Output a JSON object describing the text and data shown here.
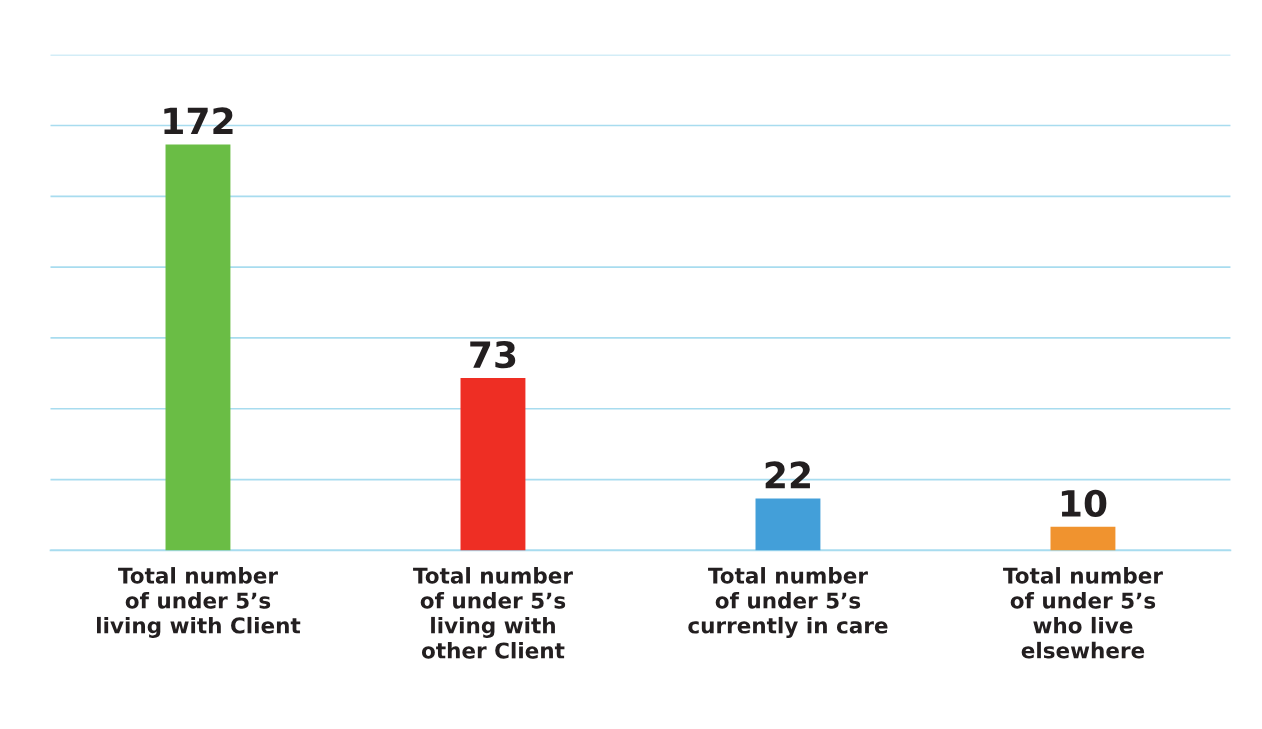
{
  "chart_data": {
    "type": "bar",
    "categories": [
      "Total number\nof under 5’s\nliving with Client",
      "Total number\nof under 5’s\nliving with\nother Client",
      "Total number\nof under 5’s\ncurrently in care",
      "Total number\nof under 5’s\nwho live\nelsewhere"
    ],
    "values": [
      172,
      73,
      22,
      10
    ],
    "colors": [
      "#6abd45",
      "#ee2e24",
      "#439fd9",
      "#f0932f"
    ],
    "ylim": [
      0,
      210
    ],
    "yticks": [
      {
        "value": 0,
        "label": null
      },
      {
        "value": 30,
        "label": null
      },
      {
        "value": 60,
        "label": null
      },
      {
        "value": 90,
        "label": null
      },
      {
        "value": 120,
        "label": null
      },
      {
        "value": 150,
        "label": null
      },
      {
        "value": 180,
        "label": null
      },
      {
        "value": 210,
        "label": null
      }
    ],
    "tick_labels": "x",
    "grid": "y",
    "data_labels": true
  }
}
